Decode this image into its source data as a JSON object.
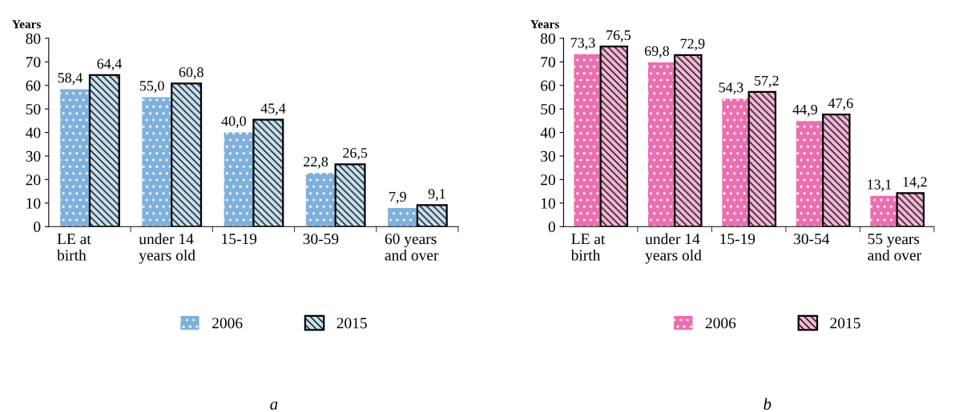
{
  "chart_data": [
    {
      "type": "bar",
      "ylabel": "Years",
      "categories": [
        "LE at\nbirth",
        "under 14\nyears old",
        "15-19",
        "30-59",
        "60 years\nand over"
      ],
      "ylim": [
        0,
        80
      ],
      "yticks": [
        0,
        10,
        20,
        30,
        40,
        50,
        60,
        70,
        80
      ],
      "grid": false,
      "legend": "bottom",
      "annotations": [
        "a"
      ],
      "series": [
        {
          "name": "2006",
          "color": "#7fb0dc",
          "values": [
            58.4,
            55.0,
            40.0,
            22.8,
            7.9
          ],
          "value_labels": [
            "58,4",
            "55,0",
            "40,0",
            "22,8",
            "7,9"
          ]
        },
        {
          "name": "2015",
          "color": "#c6e2f2",
          "values": [
            64.4,
            60.8,
            45.4,
            26.5,
            9.1
          ],
          "value_labels": [
            "64,4",
            "60,8",
            "45,4",
            "26,5",
            "9,1"
          ]
        }
      ]
    },
    {
      "type": "bar",
      "ylabel": "Years",
      "categories": [
        "LE at\nbirth",
        "under 14\nyears old",
        "15-19",
        "30-54",
        "55 years\nand over"
      ],
      "ylim": [
        0,
        80
      ],
      "yticks": [
        0,
        10,
        20,
        30,
        40,
        50,
        60,
        70,
        80
      ],
      "grid": false,
      "legend": "bottom",
      "annotations": [
        "b"
      ],
      "series": [
        {
          "name": "2006",
          "color": "#ea6fb0",
          "values": [
            73.3,
            69.8,
            54.3,
            44.9,
            13.1
          ],
          "value_labels": [
            "73,3",
            "69,8",
            "54,3",
            "44,9",
            "13,1"
          ]
        },
        {
          "name": "2015",
          "color": "#f5b8d8",
          "values": [
            76.5,
            72.9,
            57.2,
            47.6,
            14.2
          ],
          "value_labels": [
            "76,5",
            "72,9",
            "57,2",
            "47,6",
            "14,2"
          ]
        }
      ]
    }
  ]
}
